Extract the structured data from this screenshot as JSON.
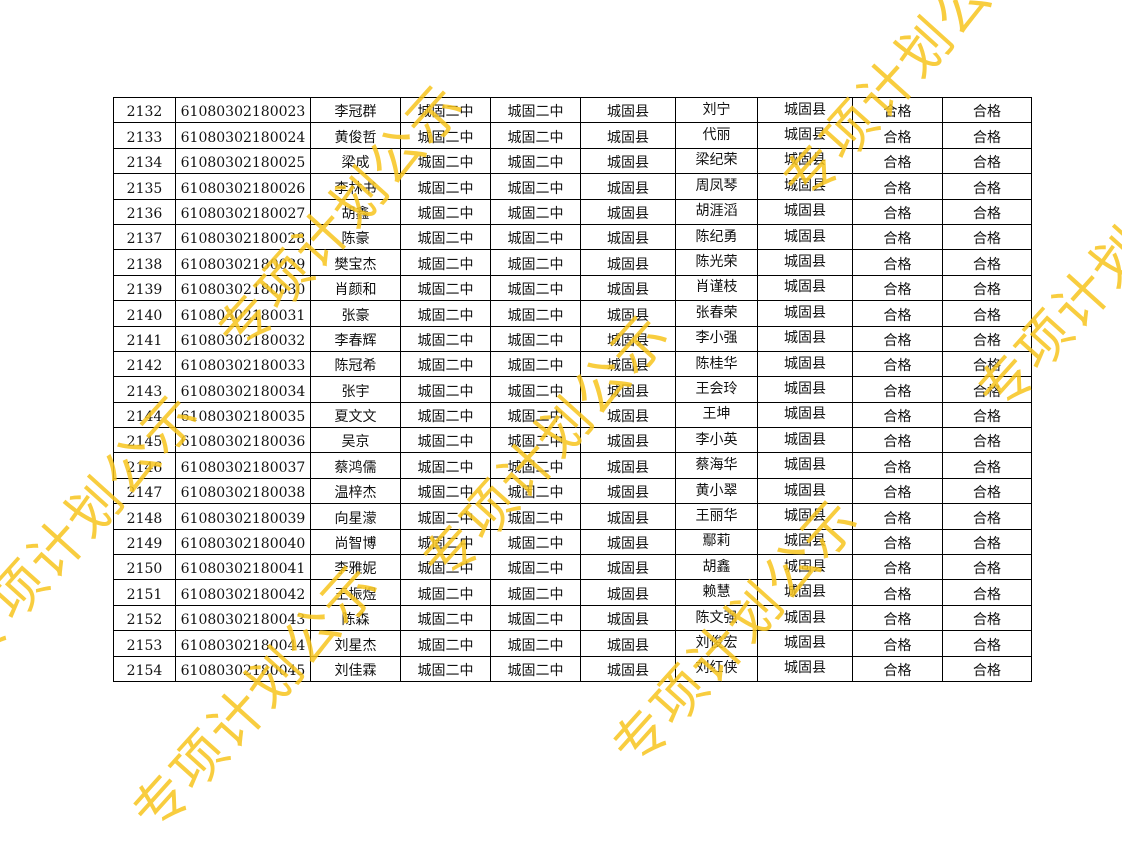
{
  "watermark_text": "专项计划公示",
  "watermark_color": "#f7c51e",
  "rows": [
    [
      "2132",
      "61080302180023",
      "李冠群",
      "城固二中",
      "城固二中",
      "城固县",
      "刘宁",
      "城固县",
      "合格",
      "合格"
    ],
    [
      "2133",
      "61080302180024",
      "黄俊哲",
      "城固二中",
      "城固二中",
      "城固县",
      "代丽",
      "城固县",
      "合格",
      "合格"
    ],
    [
      "2134",
      "61080302180025",
      "梁成",
      "城固二中",
      "城固二中",
      "城固县",
      "梁纪荣",
      "城固县",
      "合格",
      "合格"
    ],
    [
      "2135",
      "61080302180026",
      "李林书",
      "城固二中",
      "城固二中",
      "城固县",
      "周凤琴",
      "城固县",
      "合格",
      "合格"
    ],
    [
      "2136",
      "61080302180027",
      "胡鑫",
      "城固二中",
      "城固二中",
      "城固县",
      "胡涯滔",
      "城固县",
      "合格",
      "合格"
    ],
    [
      "2137",
      "61080302180028",
      "陈豪",
      "城固二中",
      "城固二中",
      "城固县",
      "陈纪勇",
      "城固县",
      "合格",
      "合格"
    ],
    [
      "2138",
      "61080302180029",
      "樊宝杰",
      "城固二中",
      "城固二中",
      "城固县",
      "陈光荣",
      "城固县",
      "合格",
      "合格"
    ],
    [
      "2139",
      "61080302180030",
      "肖颜和",
      "城固二中",
      "城固二中",
      "城固县",
      "肖谨枝",
      "城固县",
      "合格",
      "合格"
    ],
    [
      "2140",
      "61080302180031",
      "张豪",
      "城固二中",
      "城固二中",
      "城固县",
      "张春荣",
      "城固县",
      "合格",
      "合格"
    ],
    [
      "2141",
      "61080302180032",
      "李春辉",
      "城固二中",
      "城固二中",
      "城固县",
      "李小强",
      "城固县",
      "合格",
      "合格"
    ],
    [
      "2142",
      "61080302180033",
      "陈冠希",
      "城固二中",
      "城固二中",
      "城固县",
      "陈桂华",
      "城固县",
      "合格",
      "合格"
    ],
    [
      "2143",
      "61080302180034",
      "张宇",
      "城固二中",
      "城固二中",
      "城固县",
      "王会玲",
      "城固县",
      "合格",
      "合格"
    ],
    [
      "2144",
      "61080302180035",
      "夏文文",
      "城固二中",
      "城固二中",
      "城固县",
      "王坤",
      "城固县",
      "合格",
      "合格"
    ],
    [
      "2145",
      "61080302180036",
      "吴京",
      "城固二中",
      "城固二中",
      "城固县",
      "李小英",
      "城固县",
      "合格",
      "合格"
    ],
    [
      "2146",
      "61080302180037",
      "蔡鸿儒",
      "城固二中",
      "城固二中",
      "城固县",
      "蔡海华",
      "城固县",
      "合格",
      "合格"
    ],
    [
      "2147",
      "61080302180038",
      "温梓杰",
      "城固二中",
      "城固二中",
      "城固县",
      "黄小翠",
      "城固县",
      "合格",
      "合格"
    ],
    [
      "2148",
      "61080302180039",
      "向星濛",
      "城固二中",
      "城固二中",
      "城固县",
      "王丽华",
      "城固县",
      "合格",
      "合格"
    ],
    [
      "2149",
      "61080302180040",
      "尚智博",
      "城固二中",
      "城固二中",
      "城固县",
      "鄢莉",
      "城固县",
      "合格",
      "合格"
    ],
    [
      "2150",
      "61080302180041",
      "李雅妮",
      "城固二中",
      "城固二中",
      "城固县",
      "胡鑫",
      "城固县",
      "合格",
      "合格"
    ],
    [
      "2151",
      "61080302180042",
      "王振煜",
      "城固二中",
      "城固二中",
      "城固县",
      "赖慧",
      "城固县",
      "合格",
      "合格"
    ],
    [
      "2152",
      "61080302180043",
      "陈森",
      "城固二中",
      "城固二中",
      "城固县",
      "陈文强",
      "城固县",
      "合格",
      "合格"
    ],
    [
      "2153",
      "61080302180044",
      "刘星杰",
      "城固二中",
      "城固二中",
      "城固县",
      "刘俊宏",
      "城固县",
      "合格",
      "合格"
    ],
    [
      "2154",
      "61080302180045",
      "刘佳霖",
      "城固二中",
      "城固二中",
      "城固县",
      "刘红侠",
      "城固县",
      "合格",
      "合格"
    ]
  ]
}
